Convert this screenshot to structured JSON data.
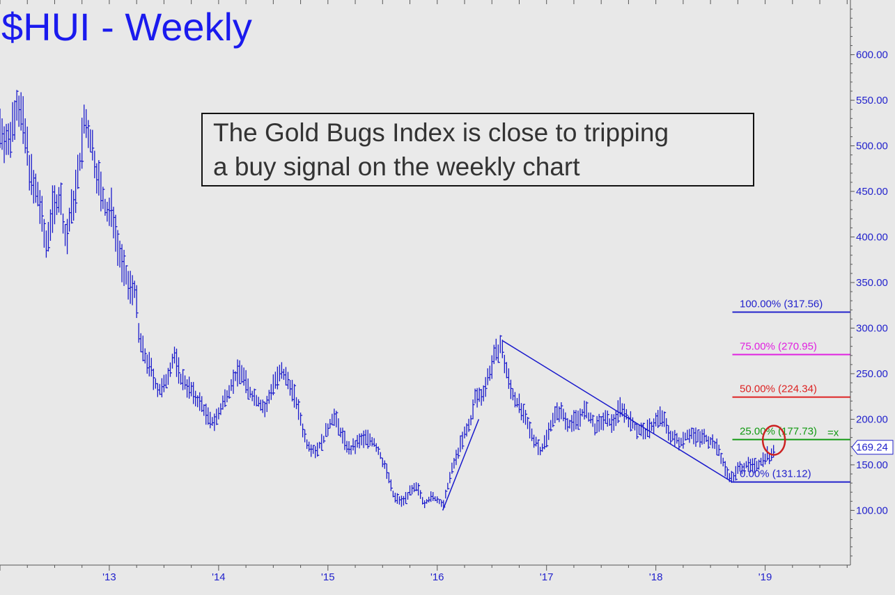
{
  "chart_data": {
    "type": "ohlc",
    "title": "$HUI - Weekly",
    "annotation_lines": [
      "The Gold Bugs Index is close to tripping",
      "a buy signal on the weekly chart"
    ],
    "y_axis": {
      "ylim": [
        40,
        660
      ],
      "ticks": [
        100,
        150,
        200,
        250,
        300,
        350,
        400,
        450,
        500,
        550,
        600
      ],
      "tick_labels": [
        "100.00",
        "150.00",
        "200.00",
        "250.00",
        "300.00",
        "350.00",
        "400.00",
        "450.00",
        "500.00",
        "550.00",
        "600.00"
      ],
      "position": "right"
    },
    "x_axis": {
      "xlim": [
        2012.0,
        2019.78
      ],
      "ticks": [
        2013,
        2014,
        2015,
        2016,
        2017,
        2018,
        2019
      ],
      "tick_labels": [
        "'13",
        "'14",
        "'15",
        "'16",
        "'17",
        "'18",
        "'19"
      ]
    },
    "last_price": {
      "value": 169.24,
      "label": "169.24",
      "color": "#2222cc"
    },
    "price_path": [
      [
        2012.0,
        520
      ],
      [
        2012.08,
        500
      ],
      [
        2012.15,
        550
      ],
      [
        2012.2,
        530
      ],
      [
        2012.25,
        495
      ],
      [
        2012.3,
        455
      ],
      [
        2012.36,
        440
      ],
      [
        2012.42,
        390
      ],
      [
        2012.48,
        430
      ],
      [
        2012.55,
        445
      ],
      [
        2012.6,
        395
      ],
      [
        2012.65,
        425
      ],
      [
        2012.72,
        470
      ],
      [
        2012.77,
        525
      ],
      [
        2012.82,
        510
      ],
      [
        2012.88,
        475
      ],
      [
        2012.93,
        445
      ],
      [
        2012.98,
        425
      ],
      [
        2013.03,
        430
      ],
      [
        2013.08,
        390
      ],
      [
        2013.13,
        365
      ],
      [
        2013.18,
        345
      ],
      [
        2013.24,
        345
      ],
      [
        2013.27,
        290
      ],
      [
        2013.32,
        270
      ],
      [
        2013.38,
        255
      ],
      [
        2013.45,
        230
      ],
      [
        2013.5,
        235
      ],
      [
        2013.55,
        255
      ],
      [
        2013.6,
        270
      ],
      [
        2013.65,
        245
      ],
      [
        2013.7,
        240
      ],
      [
        2013.78,
        225
      ],
      [
        2013.85,
        215
      ],
      [
        2013.93,
        195
      ],
      [
        2014.0,
        205
      ],
      [
        2014.05,
        220
      ],
      [
        2014.12,
        240
      ],
      [
        2014.2,
        255
      ],
      [
        2014.28,
        230
      ],
      [
        2014.36,
        220
      ],
      [
        2014.43,
        210
      ],
      [
        2014.5,
        240
      ],
      [
        2014.58,
        250
      ],
      [
        2014.65,
        240
      ],
      [
        2014.72,
        215
      ],
      [
        2014.8,
        175
      ],
      [
        2014.88,
        165
      ],
      [
        2014.95,
        175
      ],
      [
        2015.05,
        205
      ],
      [
        2015.12,
        185
      ],
      [
        2015.2,
        165
      ],
      [
        2015.28,
        175
      ],
      [
        2015.35,
        180
      ],
      [
        2015.42,
        175
      ],
      [
        2015.48,
        160
      ],
      [
        2015.55,
        140
      ],
      [
        2015.6,
        115
      ],
      [
        2015.68,
        110
      ],
      [
        2015.75,
        120
      ],
      [
        2015.82,
        125
      ],
      [
        2015.88,
        108
      ],
      [
        2015.95,
        115
      ],
      [
        2016.02,
        110
      ],
      [
        2016.06,
        105
      ],
      [
        2016.1,
        130
      ],
      [
        2016.15,
        150
      ],
      [
        2016.22,
        175
      ],
      [
        2016.3,
        195
      ],
      [
        2016.35,
        225
      ],
      [
        2016.4,
        225
      ],
      [
        2016.45,
        240
      ],
      [
        2016.5,
        260
      ],
      [
        2016.55,
        275
      ],
      [
        2016.58,
        282
      ],
      [
        2016.62,
        260
      ],
      [
        2016.68,
        230
      ],
      [
        2016.75,
        215
      ],
      [
        2016.82,
        195
      ],
      [
        2016.88,
        180
      ],
      [
        2016.95,
        165
      ],
      [
        2017.0,
        180
      ],
      [
        2017.05,
        200
      ],
      [
        2017.12,
        210
      ],
      [
        2017.2,
        195
      ],
      [
        2017.28,
        200
      ],
      [
        2017.35,
        210
      ],
      [
        2017.45,
        190
      ],
      [
        2017.52,
        200
      ],
      [
        2017.6,
        195
      ],
      [
        2017.68,
        215
      ],
      [
        2017.75,
        200
      ],
      [
        2017.82,
        190
      ],
      [
        2017.9,
        185
      ],
      [
        2017.98,
        195
      ],
      [
        2018.05,
        205
      ],
      [
        2018.1,
        190
      ],
      [
        2018.15,
        180
      ],
      [
        2018.22,
        175
      ],
      [
        2018.3,
        185
      ],
      [
        2018.38,
        180
      ],
      [
        2018.45,
        180
      ],
      [
        2018.52,
        175
      ],
      [
        2018.58,
        165
      ],
      [
        2018.62,
        150
      ],
      [
        2018.66,
        140
      ],
      [
        2018.7,
        135
      ],
      [
        2018.75,
        145
      ],
      [
        2018.82,
        150
      ],
      [
        2018.9,
        148
      ],
      [
        2018.97,
        155
      ],
      [
        2019.02,
        162
      ],
      [
        2019.05,
        155
      ],
      [
        2019.08,
        169
      ]
    ],
    "trend_lines": [
      {
        "from": [
          2016.05,
          100
        ],
        "to": [
          2016.38,
          200
        ]
      },
      {
        "from": [
          2016.6,
          286
        ],
        "to": [
          2018.7,
          131
        ]
      }
    ],
    "fib_levels": [
      {
        "pct": "100.00%",
        "value": 317.56,
        "label": "100.00% (317.56)",
        "color": "#2222cc"
      },
      {
        "pct": "75.00%",
        "value": 270.95,
        "label": "75.00% (270.95)",
        "color": "#e020e0"
      },
      {
        "pct": "50.00%",
        "value": 224.34,
        "label": "50.00% (224.34)",
        "color": "#dd2222"
      },
      {
        "pct": "25.00%",
        "value": 177.73,
        "label": "25.00% (177.73)",
        "color": "#119911"
      },
      {
        "pct": "0.00%",
        "value": 131.12,
        "label": "0.00% (131.12)",
        "color": "#2222cc"
      }
    ],
    "target_marker": {
      "label": "=x",
      "color": "#119911"
    },
    "highlight_circle": {
      "x": 2019.08,
      "y": 177,
      "color": "#cc2222"
    },
    "colors": {
      "bars": "#1a1acc",
      "title": "#1a1aee",
      "axis": "#2222cc",
      "grid_tick": "#555555",
      "background": "#e8e8e8"
    }
  }
}
